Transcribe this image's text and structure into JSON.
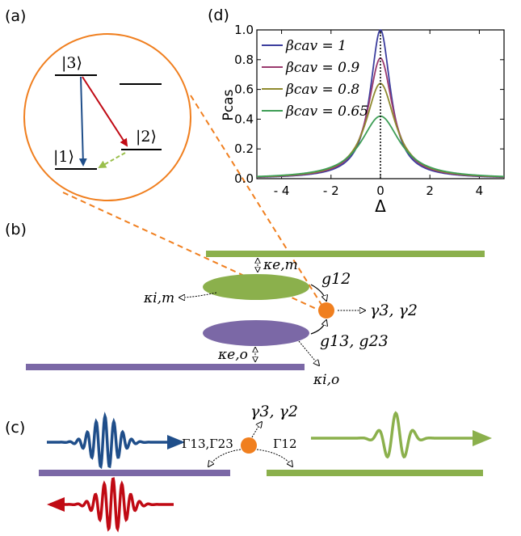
{
  "colors": {
    "orange": "#F07F1F",
    "purple": "#7B68A6",
    "green": "#8BB04C",
    "blue": "#1F4E8A",
    "red": "#C00A14",
    "ket_green_dashed": "#9ABF4C",
    "series_1": "#3C3E9E",
    "series_09": "#9A3A6E",
    "series_08": "#8F8A2E",
    "series_065": "#3E9E56"
  },
  "panels": {
    "a": "(a)",
    "b": "(b)",
    "c": "(c)",
    "d": "(d)"
  },
  "panel_a": {
    "ket3": "|3⟩",
    "ket2": "|2⟩",
    "ket1": "|1⟩"
  },
  "panel_b": {
    "kappa_em": "κe,m",
    "kappa_im": "κi,m",
    "kappa_eo": "κe,o",
    "kappa_io": "κi,o",
    "g12": "g12",
    "g13_g23": "g13, g23",
    "gamma": "γ3, γ2"
  },
  "panel_c": {
    "gamma": "γ3, γ2",
    "Gamma13_23": "Γ13,Γ23",
    "Gamma12": "Γ12"
  },
  "chart_data": {
    "type": "line",
    "title": "",
    "xlabel": "Δ",
    "ylabel": "Pcas",
    "xlim": [
      -5,
      5
    ],
    "ylim": [
      0,
      1.0
    ],
    "xticks": [
      -4,
      -2,
      0,
      2,
      4
    ],
    "xtick_labels": [
      "- 4",
      "- 2",
      "0",
      "2",
      "4"
    ],
    "yticks": [
      0.0,
      0.2,
      0.4,
      0.6,
      0.8,
      1.0
    ],
    "ytick_labels": [
      "0.0",
      "0.2",
      "0.4",
      "0.6",
      "0.8",
      "1.0"
    ],
    "grid": false,
    "legend": "top-left",
    "vline_x": 0,
    "series": [
      {
        "name": "βcav = 1",
        "peak": 1.0,
        "hwhm": 0.5
      },
      {
        "name": "βcav = 0.9",
        "peak": 0.81,
        "hwhm": 0.6
      },
      {
        "name": "βcav = 0.8",
        "peak": 0.64,
        "hwhm": 0.72
      },
      {
        "name": "βcav = 0.65",
        "peak": 0.42,
        "hwhm": 0.95
      }
    ]
  }
}
